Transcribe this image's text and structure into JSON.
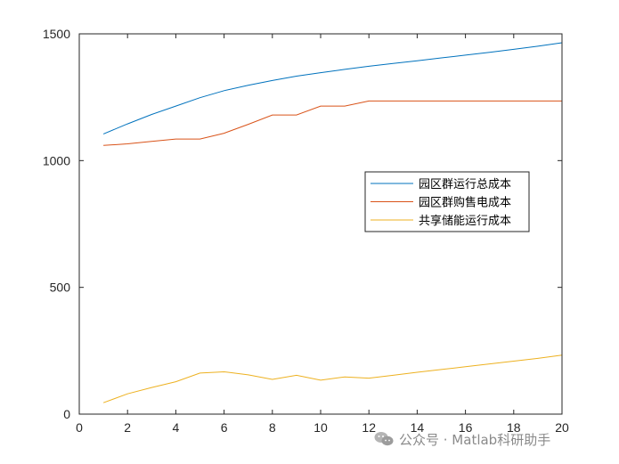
{
  "chart_data": {
    "type": "line",
    "title": "",
    "xlabel": "",
    "ylabel": "",
    "xlim": [
      0,
      20
    ],
    "ylim": [
      0,
      1500
    ],
    "xticks": [
      "0",
      "2",
      "4",
      "6",
      "8",
      "10",
      "12",
      "14",
      "16",
      "18",
      "20"
    ],
    "yticks": [
      "0",
      "500",
      "1000",
      "1500"
    ],
    "grid": false,
    "legend_position": "right",
    "series": [
      {
        "name": "园区群运行总成本",
        "color": "#0072BD",
        "x": [
          1,
          2,
          3,
          4,
          5,
          6,
          7,
          8,
          9,
          10,
          11,
          12,
          13,
          14,
          15,
          16,
          17,
          18,
          19,
          20
        ],
        "y": [
          1105,
          1145,
          1182,
          1215,
          1248,
          1276,
          1297,
          1316,
          1333,
          1347,
          1360,
          1372,
          1383,
          1394,
          1405,
          1416,
          1427,
          1439,
          1451,
          1465
        ]
      },
      {
        "name": "园区群购售电成本",
        "color": "#D95319",
        "x": [
          1,
          2,
          3,
          4,
          5,
          6,
          7,
          8,
          9,
          10,
          11,
          12,
          13,
          14,
          15,
          16,
          17,
          18,
          19,
          20
        ],
        "y": [
          1060,
          1066,
          1076,
          1085,
          1085,
          1108,
          1143,
          1180,
          1180,
          1215,
          1215,
          1235,
          1235,
          1235,
          1235,
          1235,
          1235,
          1235,
          1235,
          1235
        ]
      },
      {
        "name": "共享储能运行成本",
        "color": "#EDB120",
        "x": [
          1,
          2,
          3,
          4,
          5,
          6,
          7,
          8,
          9,
          10,
          11,
          12,
          13,
          14,
          15,
          16,
          17,
          18,
          19,
          20
        ],
        "y": [
          45,
          80,
          105,
          128,
          162,
          167,
          155,
          137,
          153,
          134,
          147,
          142,
          153,
          165,
          176,
          187,
          198,
          209,
          220,
          233
        ]
      }
    ]
  },
  "watermark": {
    "text": "公众号 · Matlab科研助手",
    "icon": "wechat-icon"
  }
}
